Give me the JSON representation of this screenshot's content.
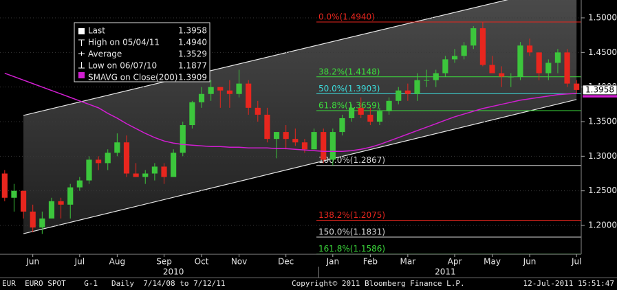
{
  "chart_data": {
    "type": "candlestick",
    "open": [
      1.275,
      1.24,
      1.25,
      1.22,
      1.197,
      1.21,
      1.235,
      1.23,
      1.255,
      1.265,
      1.295,
      1.29,
      1.305,
      1.32,
      1.275,
      1.27,
      1.275,
      1.285,
      1.27,
      1.305,
      1.345,
      1.378,
      1.39,
      1.4,
      1.395,
      1.39,
      1.405,
      1.37,
      1.36,
      1.325,
      1.335,
      1.325,
      1.32,
      1.31,
      1.335,
      1.295,
      1.335,
      1.355,
      1.37,
      1.36,
      1.35,
      1.365,
      1.38,
      1.395,
      1.39,
      1.41,
      1.41,
      1.42,
      1.44,
      1.445,
      1.46,
      1.485,
      1.432,
      1.42,
      1.415,
      1.415,
      1.46,
      1.45,
      1.42,
      1.435,
      1.45,
      1.405
    ],
    "high": [
      1.28,
      1.26,
      1.25,
      1.23,
      1.22,
      1.24,
      1.24,
      1.26,
      1.27,
      1.3,
      1.3,
      1.31,
      1.333,
      1.33,
      1.29,
      1.28,
      1.29,
      1.29,
      1.31,
      1.35,
      1.38,
      1.4,
      1.41,
      1.4,
      1.41,
      1.425,
      1.41,
      1.38,
      1.37,
      1.335,
      1.345,
      1.34,
      1.325,
      1.34,
      1.34,
      1.34,
      1.36,
      1.375,
      1.385,
      1.37,
      1.37,
      1.385,
      1.4,
      1.405,
      1.42,
      1.425,
      1.425,
      1.445,
      1.455,
      1.465,
      1.488,
      1.494,
      1.445,
      1.43,
      1.42,
      1.465,
      1.47,
      1.45,
      1.44,
      1.455,
      1.455,
      1.41
    ],
    "low": [
      1.235,
      1.22,
      1.21,
      1.19,
      1.1877,
      1.21,
      1.21,
      1.21,
      1.25,
      1.26,
      1.28,
      1.28,
      1.3,
      1.27,
      1.27,
      1.26,
      1.265,
      1.26,
      1.27,
      1.3,
      1.34,
      1.37,
      1.38,
      1.37,
      1.37,
      1.385,
      1.36,
      1.35,
      1.32,
      1.297,
      1.31,
      1.315,
      1.305,
      1.31,
      1.29,
      1.2867,
      1.33,
      1.35,
      1.355,
      1.345,
      1.345,
      1.36,
      1.375,
      1.38,
      1.38,
      1.4,
      1.4,
      1.415,
      1.435,
      1.44,
      1.455,
      1.43,
      1.42,
      1.4,
      1.4,
      1.41,
      1.445,
      1.41,
      1.41,
      1.42,
      1.4,
      1.39
    ],
    "close": [
      1.24,
      1.25,
      1.22,
      1.197,
      1.21,
      1.235,
      1.23,
      1.255,
      1.265,
      1.295,
      1.29,
      1.305,
      1.32,
      1.275,
      1.27,
      1.275,
      1.285,
      1.27,
      1.305,
      1.345,
      1.378,
      1.39,
      1.4,
      1.395,
      1.39,
      1.405,
      1.37,
      1.36,
      1.325,
      1.335,
      1.325,
      1.32,
      1.31,
      1.335,
      1.295,
      1.335,
      1.355,
      1.37,
      1.36,
      1.35,
      1.365,
      1.38,
      1.395,
      1.39,
      1.41,
      1.41,
      1.42,
      1.44,
      1.445,
      1.46,
      1.485,
      1.432,
      1.42,
      1.415,
      1.415,
      1.46,
      1.45,
      1.42,
      1.435,
      1.45,
      1.405,
      1.3958
    ],
    "sma": [
      1.42,
      1.415,
      1.41,
      1.405,
      1.4,
      1.395,
      1.39,
      1.385,
      1.38,
      1.375,
      1.37,
      1.362,
      1.355,
      1.347,
      1.34,
      1.333,
      1.327,
      1.322,
      1.319,
      1.317,
      1.316,
      1.315,
      1.314,
      1.314,
      1.313,
      1.313,
      1.312,
      1.312,
      1.312,
      1.311,
      1.311,
      1.31,
      1.309,
      1.308,
      1.307,
      1.307,
      1.307,
      1.308,
      1.31,
      1.313,
      1.317,
      1.322,
      1.327,
      1.332,
      1.337,
      1.342,
      1.347,
      1.352,
      1.357,
      1.361,
      1.365,
      1.369,
      1.372,
      1.375,
      1.378,
      1.381,
      1.383,
      1.385,
      1.387,
      1.389,
      1.39,
      1.3909
    ],
    "categories": [
      null,
      null,
      null,
      "Jun",
      null,
      null,
      null,
      null,
      "Jul",
      null,
      null,
      null,
      "Aug",
      null,
      null,
      null,
      null,
      "Sep",
      null,
      null,
      null,
      "Oct",
      null,
      null,
      null,
      "Nov",
      null,
      null,
      null,
      null,
      "Dec",
      null,
      null,
      null,
      null,
      "Jan",
      null,
      null,
      null,
      "Feb",
      null,
      null,
      null,
      "Mar",
      null,
      null,
      null,
      null,
      "Apr",
      null,
      null,
      null,
      "May",
      null,
      null,
      null,
      "Jun",
      null,
      null,
      null,
      null,
      "Jul"
    ],
    "year_categories": [
      null,
      null,
      null,
      null,
      null,
      null,
      null,
      null,
      null,
      null,
      null,
      null,
      null,
      null,
      null,
      null,
      null,
      null,
      "2010",
      null,
      null,
      null,
      null,
      null,
      null,
      null,
      null,
      null,
      null,
      null,
      null,
      null,
      null,
      null,
      null,
      null,
      null,
      null,
      null,
      null,
      null,
      null,
      null,
      null,
      null,
      null,
      null,
      "2011",
      null,
      null,
      null,
      null,
      null,
      null,
      null,
      null,
      null,
      null,
      null,
      null,
      null,
      null
    ],
    "up_color": "#3cc63c",
    "down_color": "#e8261e",
    "sma_color": "#d21ed2",
    "ylim": [
      1.1583,
      1.5258
    ],
    "yticks": [
      {
        "value": 1.2,
        "label": "1.2000"
      },
      {
        "value": 1.25,
        "label": "1.2500"
      },
      {
        "value": 1.3,
        "label": "1.3000"
      },
      {
        "value": 1.35,
        "label": "1.3500"
      },
      {
        "value": 1.4,
        "label": "1.4000"
      },
      {
        "value": 1.45,
        "label": "1.4500"
      },
      {
        "value": 1.5,
        "label": "1.5000"
      }
    ],
    "grid": true,
    "channel": {
      "upper": [
        1.359,
        1.55
      ],
      "lower": [
        1.188,
        1.382
      ]
    },
    "fib_levels": [
      {
        "label": "0.0%(1.4940)",
        "value": 1.494,
        "color": "#e8261e"
      },
      {
        "label": "38.2%(1.4148)",
        "value": 1.4148,
        "color": "#3cdc3c"
      },
      {
        "label": "50.0%(1.3903)",
        "value": 1.3903,
        "color": "#3cdcdc"
      },
      {
        "label": "61.8%(1.3659)",
        "value": 1.3659,
        "color": "#3cdc3c"
      },
      {
        "label": "100.0%(1.2867)",
        "value": 1.2867,
        "color": "#d8d8d8"
      },
      {
        "label": "138.2%(1.2075)",
        "value": 1.2075,
        "color": "#e8261e"
      },
      {
        "label": "150.0%(1.1831)",
        "value": 1.1831,
        "color": "#d8d8d8"
      },
      {
        "label": "161.8%(1.1586)",
        "value": 1.1586,
        "color": "#3cdc3c"
      }
    ],
    "legend": [
      {
        "name": "Last",
        "value": "1.3958"
      },
      {
        "name": "High on 05/04/11",
        "value": "1.4940"
      },
      {
        "name": "Average",
        "value": "1.3529"
      },
      {
        "name": "Low on 06/07/10",
        "value": "1.1877"
      },
      {
        "name": "SMAVG on Close(200)",
        "value": "1.3909"
      }
    ],
    "footer": {
      "left": "EUR  EURO SPOT    G-1   Daily  7/14/08 to 7/12/11",
      "center": "Copyright© 2011 Bloomberg Finance L.P.",
      "right": "12-Jul-2011 15:51:47"
    }
  }
}
